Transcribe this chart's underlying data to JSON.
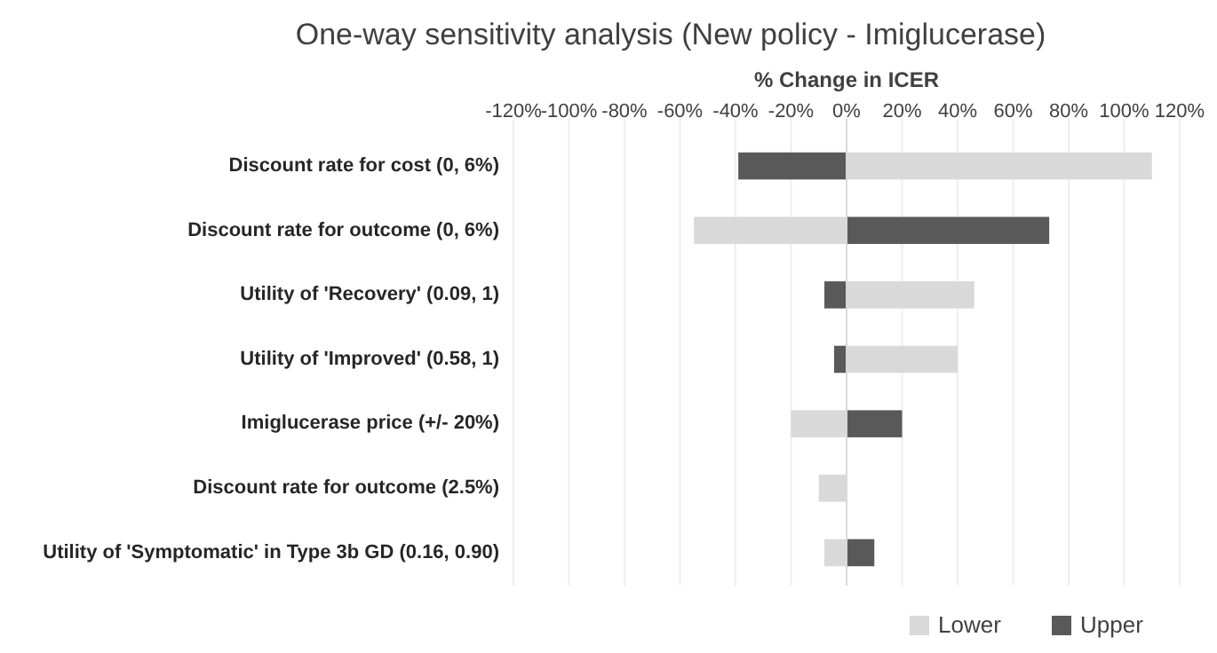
{
  "chart_data": {
    "type": "bar",
    "orientation": "horizontal",
    "title": "One-way sensitivity analysis (New policy - Imiglucerase)",
    "xlabel": "% Change in ICER",
    "categories": [
      "Discount rate for cost (0, 6%)",
      "Discount rate for outcome (0, 6%)",
      "Utility of 'Recovery' (0.09, 1)",
      "Utility of 'Improved' (0.58, 1)",
      "Imiglucerase price (+/- 20%)",
      "Discount rate for outcome (2.5%)",
      "Utility of 'Symptomatic' in Type 3b GD (0.16, 0.90)"
    ],
    "series": [
      {
        "name": "Lower",
        "color": "#d9d9d9",
        "values": [
          110,
          -55,
          46,
          40,
          -20,
          -10,
          -8
        ]
      },
      {
        "name": "Upper",
        "color": "#595959",
        "values": [
          -39,
          73,
          -8,
          -4.5,
          20,
          null,
          10
        ]
      }
    ],
    "xlim": [
      -120,
      120
    ],
    "xticks": [
      {
        "value": -120,
        "label": "-120%"
      },
      {
        "value": -100,
        "label": "-100%"
      },
      {
        "value": -80,
        "label": "-80%"
      },
      {
        "value": -60,
        "label": "-60%"
      },
      {
        "value": -40,
        "label": "-40%"
      },
      {
        "value": -20,
        "label": "-20%"
      },
      {
        "value": 0,
        "label": "0%"
      },
      {
        "value": 20,
        "label": "20%"
      },
      {
        "value": 40,
        "label": "40%"
      },
      {
        "value": 60,
        "label": "60%"
      },
      {
        "value": 80,
        "label": "80%"
      },
      {
        "value": 100,
        "label": "100%"
      },
      {
        "value": 120,
        "label": "120%"
      }
    ],
    "grid": "x",
    "legend": "bottom right",
    "stacked": true
  }
}
